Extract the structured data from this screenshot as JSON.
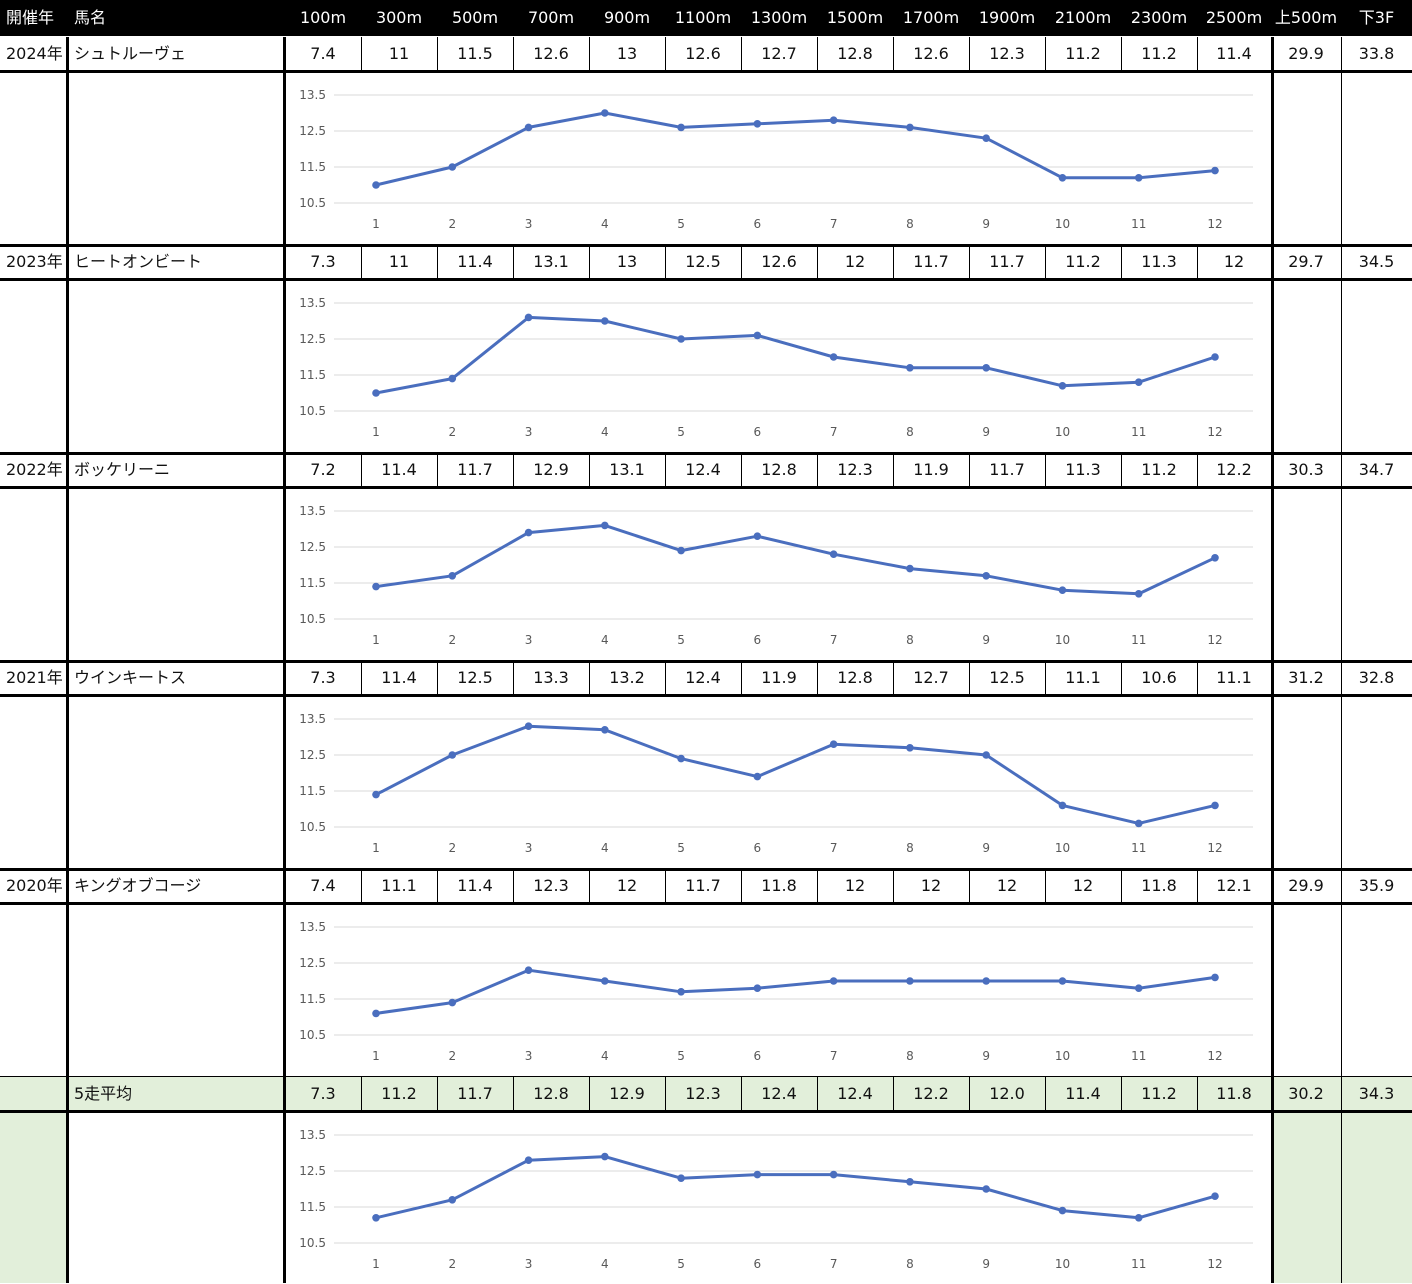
{
  "headers": {
    "year": "開催年",
    "horse": "馬名",
    "distances": [
      "100m",
      "300m",
      "500m",
      "700m",
      "900m",
      "1100m",
      "1300m",
      "1500m",
      "1700m",
      "1900m",
      "2100m",
      "2300m",
      "2500m"
    ],
    "first500": "上500m",
    "last3f": "下3F"
  },
  "rows": [
    {
      "year": "2024年",
      "horse": "シュトルーヴェ",
      "laps": [
        "7.4",
        "11",
        "11.5",
        "12.6",
        "13",
        "12.6",
        "12.7",
        "12.8",
        "12.6",
        "12.3",
        "11.2",
        "11.2",
        "11.4"
      ],
      "first500": "29.9",
      "last3f": "33.8"
    },
    {
      "year": "2023年",
      "horse": "ヒートオンビート",
      "laps": [
        "7.3",
        "11",
        "11.4",
        "13.1",
        "13",
        "12.5",
        "12.6",
        "12",
        "11.7",
        "11.7",
        "11.2",
        "11.3",
        "12"
      ],
      "first500": "29.7",
      "last3f": "34.5"
    },
    {
      "year": "2022年",
      "horse": "ボッケリーニ",
      "laps": [
        "7.2",
        "11.4",
        "11.7",
        "12.9",
        "13.1",
        "12.4",
        "12.8",
        "12.3",
        "11.9",
        "11.7",
        "11.3",
        "11.2",
        "12.2"
      ],
      "first500": "30.3",
      "last3f": "34.7"
    },
    {
      "year": "2021年",
      "horse": "ウインキートス",
      "laps": [
        "7.3",
        "11.4",
        "12.5",
        "13.3",
        "13.2",
        "12.4",
        "11.9",
        "12.8",
        "12.7",
        "12.5",
        "11.1",
        "10.6",
        "11.1"
      ],
      "first500": "31.2",
      "last3f": "32.8"
    },
    {
      "year": "2020年",
      "horse": "キングオブコージ",
      "laps": [
        "7.4",
        "11.1",
        "11.4",
        "12.3",
        "12",
        "11.7",
        "11.8",
        "12",
        "12",
        "12",
        "12",
        "11.8",
        "12.1"
      ],
      "first500": "29.9",
      "last3f": "35.9"
    },
    {
      "year": "",
      "horse": "5走平均",
      "laps": [
        "7.3",
        "11.2",
        "11.7",
        "12.8",
        "12.9",
        "12.3",
        "12.4",
        "12.4",
        "12.2",
        "12.0",
        "11.4",
        "11.2",
        "11.8"
      ],
      "first500": "30.2",
      "last3f": "34.3",
      "average": true
    }
  ],
  "chart_data": [
    {
      "type": "line",
      "x": [
        1,
        2,
        3,
        4,
        5,
        6,
        7,
        8,
        9,
        10,
        11,
        12
      ],
      "yticks": [
        "13.5",
        "12.5",
        "11.5",
        "10.5"
      ],
      "ylim": [
        10.5,
        13.5
      ],
      "grid": true,
      "series": [
        {
          "values": [
            11,
            11.5,
            12.6,
            13,
            12.6,
            12.7,
            12.8,
            12.6,
            12.3,
            11.2,
            11.2,
            11.4
          ]
        }
      ]
    },
    {
      "type": "line",
      "x": [
        1,
        2,
        3,
        4,
        5,
        6,
        7,
        8,
        9,
        10,
        11,
        12
      ],
      "yticks": [
        "13.5",
        "12.5",
        "11.5",
        "10.5"
      ],
      "ylim": [
        10.5,
        13.5
      ],
      "grid": true,
      "series": [
        {
          "values": [
            11,
            11.4,
            13.1,
            13,
            12.5,
            12.6,
            12,
            11.7,
            11.7,
            11.2,
            11.3,
            12
          ]
        }
      ]
    },
    {
      "type": "line",
      "x": [
        1,
        2,
        3,
        4,
        5,
        6,
        7,
        8,
        9,
        10,
        11,
        12
      ],
      "yticks": [
        "13.5",
        "12.5",
        "11.5",
        "10.5"
      ],
      "ylim": [
        10.5,
        13.5
      ],
      "grid": true,
      "series": [
        {
          "values": [
            11.4,
            11.7,
            12.9,
            13.1,
            12.4,
            12.8,
            12.3,
            11.9,
            11.7,
            11.3,
            11.2,
            12.2
          ]
        }
      ]
    },
    {
      "type": "line",
      "x": [
        1,
        2,
        3,
        4,
        5,
        6,
        7,
        8,
        9,
        10,
        11,
        12
      ],
      "yticks": [
        "13.5",
        "12.5",
        "11.5",
        "10.5"
      ],
      "ylim": [
        10.5,
        13.5
      ],
      "grid": true,
      "series": [
        {
          "values": [
            11.4,
            12.5,
            13.3,
            13.2,
            12.4,
            11.9,
            12.8,
            12.7,
            12.5,
            11.1,
            10.6,
            11.1
          ]
        }
      ]
    },
    {
      "type": "line",
      "x": [
        1,
        2,
        3,
        4,
        5,
        6,
        7,
        8,
        9,
        10,
        11,
        12
      ],
      "yticks": [
        "13.5",
        "12.5",
        "11.5",
        "10.5"
      ],
      "ylim": [
        10.5,
        13.5
      ],
      "grid": true,
      "series": [
        {
          "values": [
            11.1,
            11.4,
            12.3,
            12,
            11.7,
            11.8,
            12,
            12,
            12,
            12,
            11.8,
            12.1
          ]
        }
      ]
    },
    {
      "type": "line",
      "x": [
        1,
        2,
        3,
        4,
        5,
        6,
        7,
        8,
        9,
        10,
        11,
        12
      ],
      "yticks": [
        "13.5",
        "12.5",
        "11.5",
        "10.5"
      ],
      "ylim": [
        10.5,
        13.5
      ],
      "grid": true,
      "series": [
        {
          "values": [
            11.2,
            11.7,
            12.8,
            12.9,
            12.3,
            12.4,
            12.4,
            12.2,
            12.0,
            11.4,
            11.2,
            11.8
          ]
        }
      ]
    }
  ],
  "colors": {
    "line": "#4a6ebe",
    "grid": "#d9d9d9",
    "tick": "#595959",
    "avg_bg": "#e2efda",
    "header_bg": "#000000",
    "header_fg": "#ffffff"
  }
}
